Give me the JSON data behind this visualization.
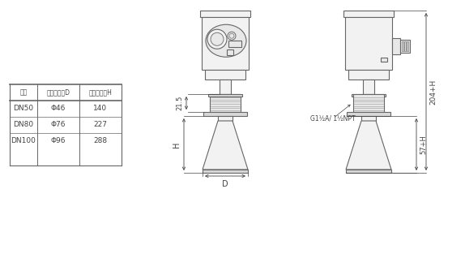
{
  "bg_color": "#ffffff",
  "line_color": "#666666",
  "dim_color": "#444444",
  "fill_light": "#f2f2f2",
  "fill_mid": "#e8e8e8",
  "fill_dark": "#d8d8d8",
  "table_header": [
    "法兰",
    "喇叭口直径D",
    "喇叭口高度H"
  ],
  "table_rows": [
    [
      "DN50",
      "Φ46",
      "140"
    ],
    [
      "DN80",
      "Φ76",
      "227"
    ],
    [
      "DN100",
      "Φ96",
      "288"
    ]
  ],
  "dim_215": "21.5",
  "dim_H": "H",
  "dim_D": "D",
  "dim_204H": "204+H",
  "dim_57H": "57+H",
  "thread_label": "G1½A/ 1½NPT"
}
